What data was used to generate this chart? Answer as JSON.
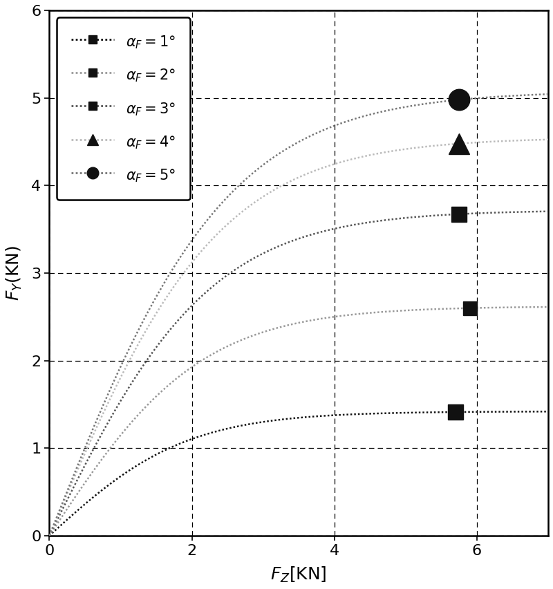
{
  "title": "",
  "xlabel": "$F_Z$[KN]",
  "ylabel": "$F_Y$(KN)",
  "xlim": [
    0,
    7
  ],
  "ylim": [
    0,
    6
  ],
  "xticks": [
    0,
    2,
    4,
    6
  ],
  "yticks": [
    0,
    1,
    2,
    3,
    4,
    5,
    6
  ],
  "background_color": "#ffffff",
  "curves": [
    {
      "alpha_deg": 1,
      "color": "#111111",
      "linewidth": 1.8,
      "D": 1.42,
      "k": 0.52,
      "marker": "rect_rotated",
      "marker_x": 5.7,
      "marker_color": "#111111"
    },
    {
      "alpha_deg": 2,
      "color": "#999999",
      "linewidth": 1.8,
      "D": 2.62,
      "k": 0.47,
      "marker": "square",
      "marker_x": 5.9,
      "marker_color": "#111111"
    },
    {
      "alpha_deg": 3,
      "color": "#555555",
      "linewidth": 1.8,
      "D": 3.72,
      "k": 0.44,
      "marker": "diamond_rotated",
      "marker_x": 5.75,
      "marker_color": "#111111"
    },
    {
      "alpha_deg": 4,
      "color": "#bbbbbb",
      "linewidth": 1.8,
      "D": 4.55,
      "k": 0.42,
      "marker": "triangle",
      "marker_x": 5.75,
      "marker_color": "#111111"
    },
    {
      "alpha_deg": 5,
      "color": "#777777",
      "linewidth": 1.8,
      "D": 5.08,
      "k": 0.4,
      "marker": "circle",
      "marker_x": 5.75,
      "marker_color": "#111111"
    }
  ],
  "legend_labels": [
    "$\\alpha_F=1°$",
    "$\\alpha_F=2°$",
    "$\\alpha_F=3°$",
    "$\\alpha_F=4°$",
    "$\\alpha_F=5°$"
  ],
  "figsize": [
    8.0,
    8.52
  ],
  "dpi": 100
}
